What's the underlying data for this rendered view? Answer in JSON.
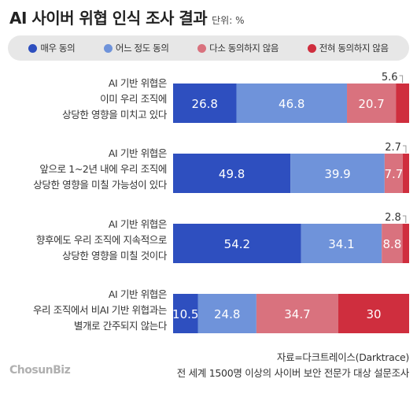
{
  "title": "AI 사이버 위협 인식 조사 결과",
  "unit": "단위: %",
  "legend": [
    {
      "label": "매우 동의",
      "color": "#2e4fbf"
    },
    {
      "label": "어느 정도 동의",
      "color": "#6f93da"
    },
    {
      "label": "다소 동의하지 않음",
      "color": "#d9727e"
    },
    {
      "label": "전혀 동의하지 않음",
      "color": "#cf2e3e"
    }
  ],
  "rows": [
    {
      "lines": [
        "AI 기반 위협은",
        "이미 우리 조직에",
        "상당한 영향을 미치고 있다"
      ]
    },
    {
      "lines": [
        "AI 기반 위협은",
        "앞으로 1~2년 내에 우리 조직에",
        "상당한 영향을 미칠 가능성이 있다"
      ]
    },
    {
      "lines": [
        "AI 기반 위협은",
        "향후에도 우리 조직에 지속적으로",
        "상당한 영향을 미칠 것이다"
      ]
    },
    {
      "lines": [
        "AI 기반 위협은",
        "우리 조직에서 비AI 기반 위협과는",
        "별개로 간주되지 않는다"
      ]
    }
  ],
  "chart_data": {
    "type": "bar",
    "orientation": "horizontal",
    "stacked": true,
    "categories": [
      "AI 기반 위협은 이미 우리 조직에 상당한 영향을 미치고 있다",
      "AI 기반 위협은 앞으로 1~2년 내에 우리 조직에 상당한 영향을 미칠 가능성이 있다",
      "AI 기반 위협은 향후에도 우리 조직에 지속적으로 상당한 영향을 미칠 것이다",
      "AI 기반 위협은 우리 조직에서 비AI 기반 위협과는 별개로 간주되지 않는다"
    ],
    "series": [
      {
        "name": "매우 동의",
        "color": "#2e4fbf",
        "values": [
          26.8,
          49.8,
          54.2,
          10.5
        ]
      },
      {
        "name": "어느 정도 동의",
        "color": "#6f93da",
        "values": [
          46.8,
          39.9,
          34.1,
          24.8
        ]
      },
      {
        "name": "다소 동의하지 않음",
        "color": "#d9727e",
        "values": [
          20.7,
          7.7,
          8.8,
          34.7
        ]
      },
      {
        "name": "전혀 동의하지 않음",
        "color": "#cf2e3e",
        "values": [
          5.6,
          2.7,
          2.8,
          30.0
        ]
      }
    ],
    "title": "AI 사이버 위협 인식 조사 결과",
    "unit": "단위: %",
    "legend_position": "top",
    "grid": false
  },
  "source": {
    "line1": "자료=다크트레이스(Darktrace)",
    "line2": "전 세계 1500명 이상의 사이버 보안 전문가 대상 설문조사"
  },
  "logo": "ChosunBiz"
}
